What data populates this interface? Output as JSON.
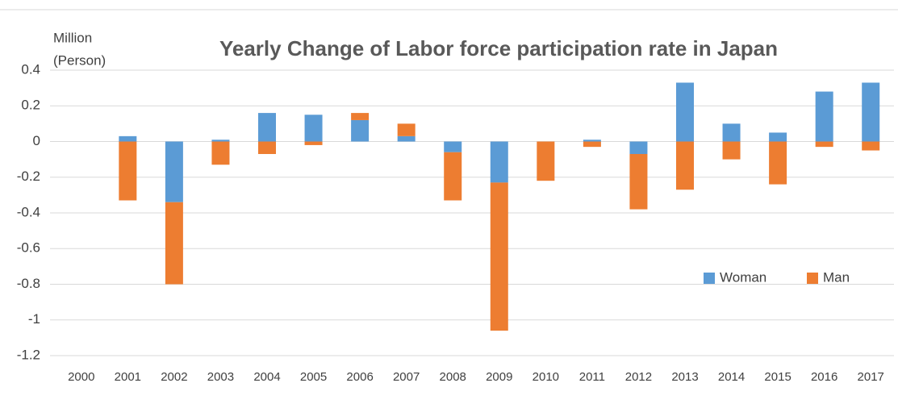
{
  "chart_data": {
    "type": "bar",
    "stacked": true,
    "title": "Yearly Change of Labor force participation  rate in Japan",
    "ylabel": [
      "Million",
      "(Person)"
    ],
    "categories": [
      "2000",
      "2001",
      "2002",
      "2003",
      "2004",
      "2005",
      "2006",
      "2007",
      "2008",
      "2009",
      "2010",
      "2011",
      "2012",
      "2013",
      "2014",
      "2015",
      "2016",
      "2017"
    ],
    "series": [
      {
        "name": "Woman",
        "color": "#5b9bd5",
        "values": [
          null,
          0.03,
          -0.34,
          0.01,
          0.16,
          0.15,
          0.12,
          0.03,
          -0.06,
          -0.23,
          0,
          0.01,
          -0.07,
          0.33,
          0.1,
          0.05,
          0.28,
          0.33
        ]
      },
      {
        "name": "Man",
        "color": "#ed7d31",
        "values": [
          null,
          -0.33,
          -0.46,
          -0.13,
          -0.07,
          -0.02,
          0.04,
          0.07,
          -0.27,
          -0.83,
          -0.22,
          -0.03,
          -0.31,
          -0.27,
          -0.1,
          -0.24,
          -0.03,
          -0.05
        ]
      }
    ],
    "ylim": [
      -1.2,
      0.4
    ],
    "yticks": [
      0.4,
      0.2,
      0,
      -0.2,
      -0.4,
      -0.6,
      -0.8,
      -1,
      -1.2
    ],
    "grid": true,
    "legend": "lower right"
  }
}
